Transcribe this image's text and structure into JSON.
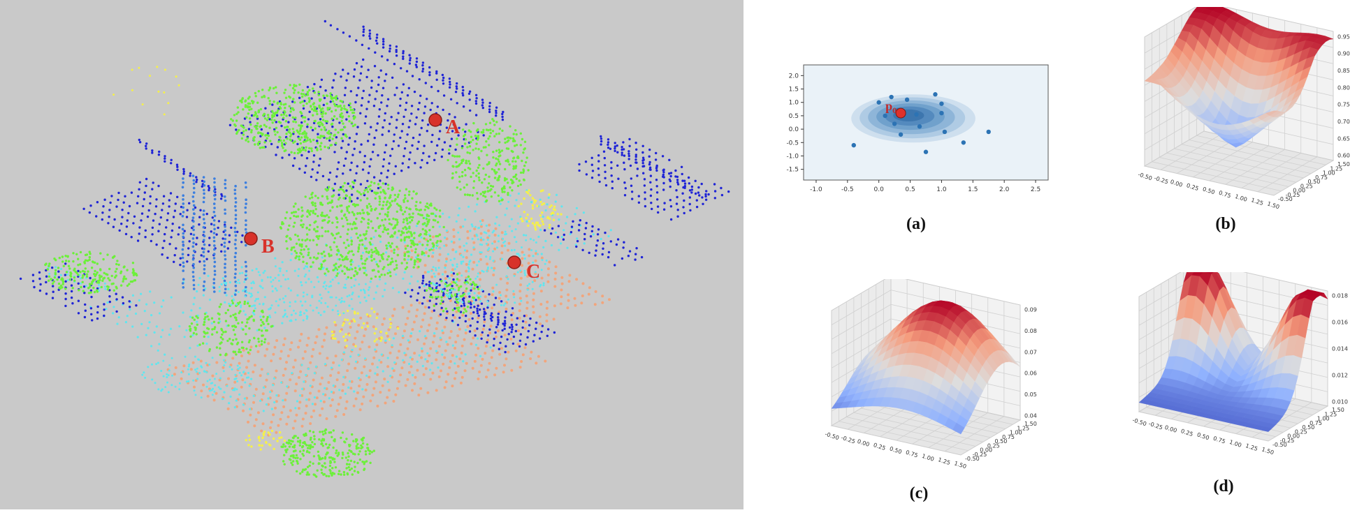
{
  "left_panel": {
    "markers": [
      {
        "label": "A"
      },
      {
        "label": "B"
      },
      {
        "label": "C"
      }
    ],
    "colors": {
      "background": "#c9c9c9",
      "roof_blue": "#1f24d6",
      "wall_blue": "#3b7fe0",
      "vegetation_green": "#6cf03a",
      "ground_cyan": "#5fe6ef",
      "ground_orange": "#f2a57c",
      "yellow": "#f5f04a",
      "marker_red": "#d8322a"
    }
  },
  "subfigures": [
    {
      "caption": "(a)"
    },
    {
      "caption": "(b)"
    },
    {
      "caption": "(c)"
    },
    {
      "caption": "(d)"
    }
  ],
  "chart_data": [
    {
      "type": "scatter",
      "id": "a",
      "annotation": "p",
      "annotation_sub": "0",
      "xticks": [
        "-1.0",
        "-0.5",
        "0.0",
        "0.5",
        "1.0",
        "1.5",
        "2.0",
        "2.5"
      ],
      "yticks": [
        "2.0",
        "1.5",
        "1.0",
        "0.5",
        "0.0",
        "-0.5",
        "-1.0",
        "-1.5"
      ],
      "xlim": [
        -1.2,
        2.7
      ],
      "ylim": [
        -1.9,
        2.4
      ],
      "points": [
        {
          "x": 0.0,
          "y": 1.0
        },
        {
          "x": 0.1,
          "y": 0.5
        },
        {
          "x": 0.2,
          "y": 1.2
        },
        {
          "x": 0.25,
          "y": 0.2
        },
        {
          "x": 0.3,
          "y": 0.7
        },
        {
          "x": 0.35,
          "y": -0.2
        },
        {
          "x": 0.45,
          "y": 1.1
        },
        {
          "x": 0.6,
          "y": 0.55
        },
        {
          "x": 0.65,
          "y": 0.1
        },
        {
          "x": 0.9,
          "y": 1.3
        },
        {
          "x": 1.0,
          "y": 0.95
        },
        {
          "x": 1.0,
          "y": 0.6
        },
        {
          "x": 1.05,
          "y": -0.1
        },
        {
          "x": 1.35,
          "y": -0.5
        },
        {
          "x": 1.75,
          "y": -0.1
        },
        {
          "x": 0.75,
          "y": -0.85
        },
        {
          "x": -0.4,
          "y": -0.6
        }
      ],
      "highlight": {
        "x": 0.35,
        "y": 0.6
      },
      "colors": {
        "kde": "#2f6fa8",
        "point": "#2c73b4",
        "highlight": "#e0312b"
      }
    },
    {
      "type": "surface",
      "id": "b",
      "zticks": [
        "0.95",
        "0.90",
        "0.85",
        "0.80",
        "0.75",
        "0.70",
        "0.65",
        "0.60"
      ],
      "xticks": [
        "-0.50",
        "-0.25",
        "0.00",
        "0.25",
        "0.50",
        "0.75",
        "1.00",
        "1.25",
        "1.50"
      ],
      "yticks": [
        "1.50",
        "1.25",
        "1.00",
        "0.75",
        "0.50",
        "0.25",
        "0.00",
        "-0.25",
        "-0.50"
      ],
      "colormap": "coolwarm"
    },
    {
      "type": "surface",
      "id": "c",
      "zticks": [
        "0.09",
        "0.08",
        "0.07",
        "0.06",
        "0.05",
        "0.04"
      ],
      "xticks": [
        "-0.50",
        "-0.25",
        "0.00",
        "0.25",
        "0.50",
        "0.75",
        "1.00",
        "1.25",
        "1.50"
      ],
      "yticks": [
        "1.50",
        "1.25",
        "1.00",
        "0.75",
        "0.50",
        "0.25",
        "0.00",
        "-0.25",
        "-0.50"
      ],
      "colormap": "coolwarm"
    },
    {
      "type": "surface",
      "id": "d",
      "zticks": [
        "0.018",
        "0.016",
        "0.014",
        "0.012",
        "0.010"
      ],
      "xticks": [
        "-0.50",
        "-0.25",
        "0.00",
        "0.25",
        "0.50",
        "0.75",
        "1.00",
        "1.25",
        "1.50"
      ],
      "yticks": [
        "1.50",
        "1.25",
        "1.00",
        "0.75",
        "0.50",
        "0.25",
        "0.00",
        "-0.25",
        "-0.50"
      ],
      "colormap": "coolwarm"
    }
  ]
}
